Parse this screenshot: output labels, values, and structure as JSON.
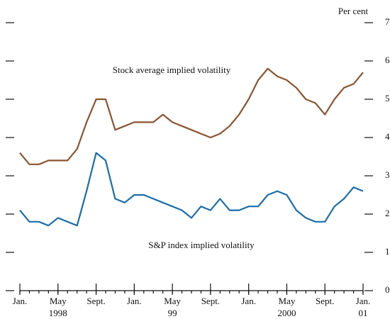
{
  "chart_data": {
    "type": "line",
    "y_axis_label": "Per cent",
    "x": [
      "1998-01",
      "1998-02",
      "1998-03",
      "1998-04",
      "1998-05",
      "1998-06",
      "1998-07",
      "1998-08",
      "1998-09",
      "1998-10",
      "1998-11",
      "1998-12",
      "1999-01",
      "1999-02",
      "1999-03",
      "1999-04",
      "1999-05",
      "1999-06",
      "1999-07",
      "1999-08",
      "1999-09",
      "1999-10",
      "1999-11",
      "1999-12",
      "2000-01",
      "2000-02",
      "2000-03",
      "2000-04",
      "2000-05",
      "2000-06",
      "2000-07",
      "2000-08",
      "2000-09",
      "2000-10",
      "2000-11",
      "2000-12",
      "2001-01"
    ],
    "series": [
      {
        "name": "Stock average implied volatility",
        "color": "#8b5530",
        "values": [
          36,
          33,
          33,
          34,
          34,
          34,
          37,
          44,
          50,
          50,
          42,
          43,
          44,
          44,
          44,
          46,
          44,
          43,
          42,
          41,
          40,
          41,
          43,
          46,
          50,
          55,
          58,
          56,
          55,
          53,
          50,
          49,
          46,
          50,
          53,
          54,
          57
        ]
      },
      {
        "name": "S&P index implied volatility",
        "color": "#1a6eab",
        "values": [
          21,
          18,
          18,
          17,
          19,
          18,
          17,
          26,
          36,
          34,
          24,
          23,
          25,
          25,
          24,
          23,
          22,
          21,
          19,
          22,
          21,
          24,
          21,
          21,
          22,
          22,
          25,
          26,
          25,
          21,
          19,
          18,
          18,
          22,
          24,
          27,
          26
        ]
      }
    ],
    "xticks": [
      {
        "value": "1998-01",
        "label": "Jan."
      },
      {
        "value": "1998-05",
        "label": "May"
      },
      {
        "value": "1998-09",
        "label": "Sept."
      },
      {
        "value": "1999-01",
        "label": "Jan."
      },
      {
        "value": "1999-05",
        "label": "May"
      },
      {
        "value": "1999-09",
        "label": "Sept."
      },
      {
        "value": "2000-01",
        "label": "Jan."
      },
      {
        "value": "2000-05",
        "label": "May"
      },
      {
        "value": "2000-09",
        "label": "Sept."
      },
      {
        "value": "2001-01",
        "label": "Jan."
      }
    ],
    "year_ticks": [
      {
        "value": "1998-05",
        "label": "1998"
      },
      {
        "value": "1999-05",
        "label": "99"
      },
      {
        "value": "2000-05",
        "label": "2000"
      },
      {
        "value": "2001-01",
        "label": "01"
      }
    ],
    "ylim": [
      0,
      70
    ],
    "yticks": [
      0,
      10,
      20,
      30,
      40,
      50,
      60,
      70
    ]
  }
}
